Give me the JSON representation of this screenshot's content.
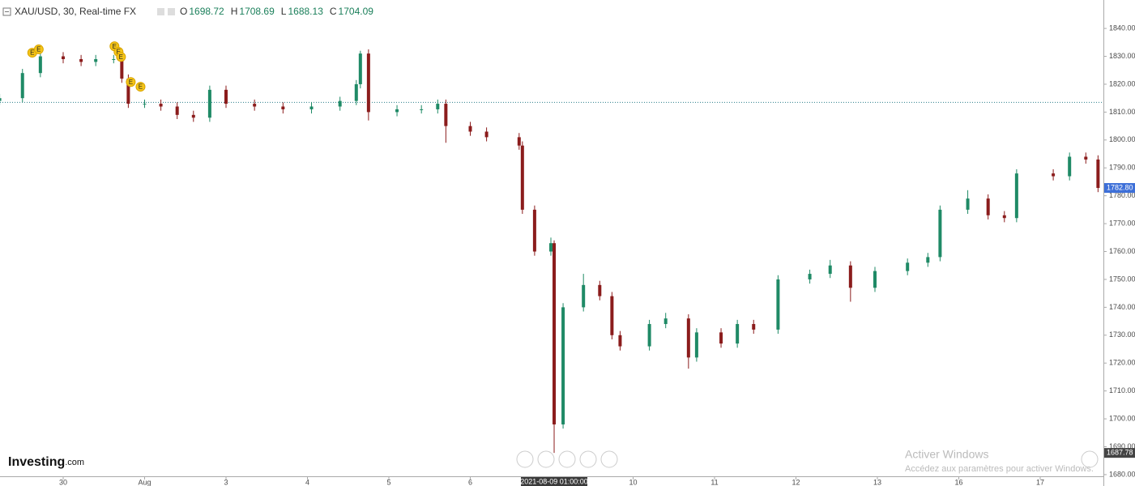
{
  "header": {
    "symbol": "XAU/USD, 30, Real-time FX",
    "ohlc": [
      {
        "key": "O",
        "value": "1698.72"
      },
      {
        "key": "H",
        "value": "1708.69"
      },
      {
        "key": "L",
        "value": "1688.13"
      },
      {
        "key": "C",
        "value": "1704.09"
      }
    ]
  },
  "chart_data": {
    "type": "candlestick",
    "up_color": "#1f8a66",
    "down_color": "#8b1c1c",
    "xlim": [
      -0.776,
      12.776
    ],
    "xticks": [
      {
        "value": 0,
        "label": "30"
      },
      {
        "value": 1,
        "label": "Aug"
      },
      {
        "value": 2,
        "label": "3"
      },
      {
        "value": 3,
        "label": "4"
      },
      {
        "value": 4,
        "label": "5"
      },
      {
        "value": 5,
        "label": "6"
      },
      {
        "value": 7,
        "label": "10"
      },
      {
        "value": 8,
        "label": "11"
      },
      {
        "value": 9,
        "label": "12"
      },
      {
        "value": 10,
        "label": "13"
      },
      {
        "value": 11,
        "label": "16"
      },
      {
        "value": 12,
        "label": "17"
      }
    ],
    "ylim": [
      1679.4,
      1850.2
    ],
    "yticks": [
      {
        "value": 1680,
        "label": "1680.00"
      },
      {
        "value": 1690,
        "label": "1690.00"
      },
      {
        "value": 1700,
        "label": "1700.00"
      },
      {
        "value": 1710,
        "label": "1710.00"
      },
      {
        "value": 1720,
        "label": "1720.00"
      },
      {
        "value": 1730,
        "label": "1730.00"
      },
      {
        "value": 1740,
        "label": "1740.00"
      },
      {
        "value": 1750,
        "label": "1750.00"
      },
      {
        "value": 1760,
        "label": "1760.00"
      },
      {
        "value": 1770,
        "label": "1770.00"
      },
      {
        "value": 1780,
        "label": "1780.00"
      },
      {
        "value": 1790,
        "label": "1790.00"
      },
      {
        "value": 1800,
        "label": "1800.00"
      },
      {
        "value": 1810,
        "label": "1810.00"
      },
      {
        "value": 1820,
        "label": "1820.00"
      },
      {
        "value": 1830,
        "label": "1830.00"
      },
      {
        "value": 1840,
        "label": "1840.00"
      }
    ],
    "x": [
      -0.78,
      -0.5,
      -0.28,
      0,
      0.22,
      0.4,
      0.62,
      0.72,
      0.8,
      1.0,
      1.2,
      1.4,
      1.6,
      1.8,
      2.0,
      2.35,
      2.7,
      3.05,
      3.4,
      3.6,
      3.65,
      3.75,
      4.1,
      4.4,
      4.6,
      4.7,
      5.0,
      5.2,
      5.6,
      5.64,
      5.79,
      5.99,
      6.03,
      6.14,
      6.39,
      6.59,
      6.74,
      6.84,
      7.2,
      7.4,
      7.68,
      7.78,
      8.08,
      8.28,
      8.48,
      8.78,
      9.17,
      9.42,
      9.67,
      9.97,
      10.37,
      10.62,
      10.77,
      11.11,
      11.36,
      11.56,
      11.71,
      12.16,
      12.36,
      12.56,
      12.71
    ],
    "open": [
      1814,
      1815,
      1824,
      1830,
      1829,
      1828,
      1829,
      1829,
      1822,
      1813,
      1813,
      1812,
      1809,
      1808,
      1818,
      1813,
      1812,
      1811,
      1812,
      1814,
      1820,
      1831,
      1810,
      1811,
      1811,
      1813,
      1805,
      1803,
      1801,
      1798,
      1775,
      1760,
      1763,
      1698,
      1740,
      1748,
      1744,
      1730,
      1726,
      1734,
      1736,
      1722,
      1731,
      1727,
      1734,
      1732,
      1750,
      1752,
      1755,
      1747,
      1753,
      1756,
      1758,
      1775,
      1779,
      1773,
      1772,
      1788,
      1787,
      1794,
      1793
    ],
    "high": [
      1816.5,
      1825.5,
      1831.5,
      1831.5,
      1830.5,
      1830.5,
      1830.5,
      1830.5,
      1823.5,
      1814.5,
      1814.5,
      1813.5,
      1810.5,
      1819.5,
      1819.5,
      1814.5,
      1813.5,
      1813.5,
      1815.5,
      1821.5,
      1832,
      1832.5,
      1812.5,
      1812.5,
      1814.5,
      1814.5,
      1806.5,
      1804.5,
      1802.5,
      1799.5,
      1776.5,
      1765,
      1764,
      1741.5,
      1752,
      1749.5,
      1745.5,
      1731.5,
      1735.5,
      1738,
      1737.5,
      1732.5,
      1732.5,
      1735.5,
      1735.5,
      1751.5,
      1753.5,
      1757,
      1756.5,
      1754.5,
      1757.5,
      1759.5,
      1776.5,
      1782,
      1780.5,
      1774.5,
      1789.5,
      1789.5,
      1795.5,
      1795.5,
      1794.5
    ],
    "low": [
      1812.5,
      1813.5,
      1822.5,
      1827.5,
      1826.5,
      1826.5,
      1827.5,
      1820.5,
      1811.5,
      1811.5,
      1810.5,
      1807.5,
      1806.5,
      1806.5,
      1811.5,
      1810.5,
      1809.5,
      1809.5,
      1810.5,
      1812.5,
      1818.5,
      1807,
      1808.5,
      1809.5,
      1809.5,
      1799,
      1801.5,
      1799.5,
      1796.5,
      1773.5,
      1758.5,
      1758.5,
      1687.78,
      1696.5,
      1738.5,
      1742.5,
      1728.5,
      1724.5,
      1724.5,
      1732.5,
      1718,
      1720.5,
      1725.5,
      1725.5,
      1730.5,
      1730.5,
      1748.5,
      1750.5,
      1742,
      1745.5,
      1751.5,
      1754.5,
      1756.5,
      1773.5,
      1771.5,
      1770.5,
      1770.5,
      1785.5,
      1785.5,
      1791.5,
      1781.3
    ],
    "close": [
      1815,
      1824,
      1830,
      1829,
      1828,
      1829,
      1829,
      1822,
      1813,
      1813,
      1812,
      1809,
      1808,
      1818,
      1813,
      1812,
      1811,
      1812,
      1814,
      1820,
      1831,
      1810,
      1811,
      1811,
      1813,
      1805,
      1803,
      1801,
      1798,
      1775,
      1760,
      1763,
      1698,
      1740,
      1748,
      1744,
      1730,
      1726,
      1734,
      1736,
      1722,
      1731,
      1727,
      1734,
      1732,
      1750,
      1752,
      1755,
      1747,
      1753,
      1756,
      1758,
      1775,
      1779,
      1773,
      1772,
      1788,
      1787,
      1794,
      1793,
      1782.8
    ],
    "reference_line": 1813.5,
    "last_price": {
      "value": 1782.8,
      "label": "1782.80"
    },
    "low_price": {
      "value": 1687.78,
      "label": "1687.78"
    },
    "crosshair_label": "2021-08-09 01:00:00",
    "crosshair_x": 6.03,
    "events": {
      "label": "E",
      "x": [
        -0.38,
        -0.3,
        0.63,
        0.68,
        0.71,
        0.83,
        0.95
      ],
      "y": [
        1831.3,
        1832.5,
        1833.6,
        1831.6,
        1829.8,
        1820.8,
        1819.1
      ]
    }
  },
  "watermark": {
    "logo": "Investing",
    "logo_suffix": ".com",
    "activate_title": "Activer Windows",
    "activate_text": "Accédez aux paramètres pour activer Windows."
  }
}
